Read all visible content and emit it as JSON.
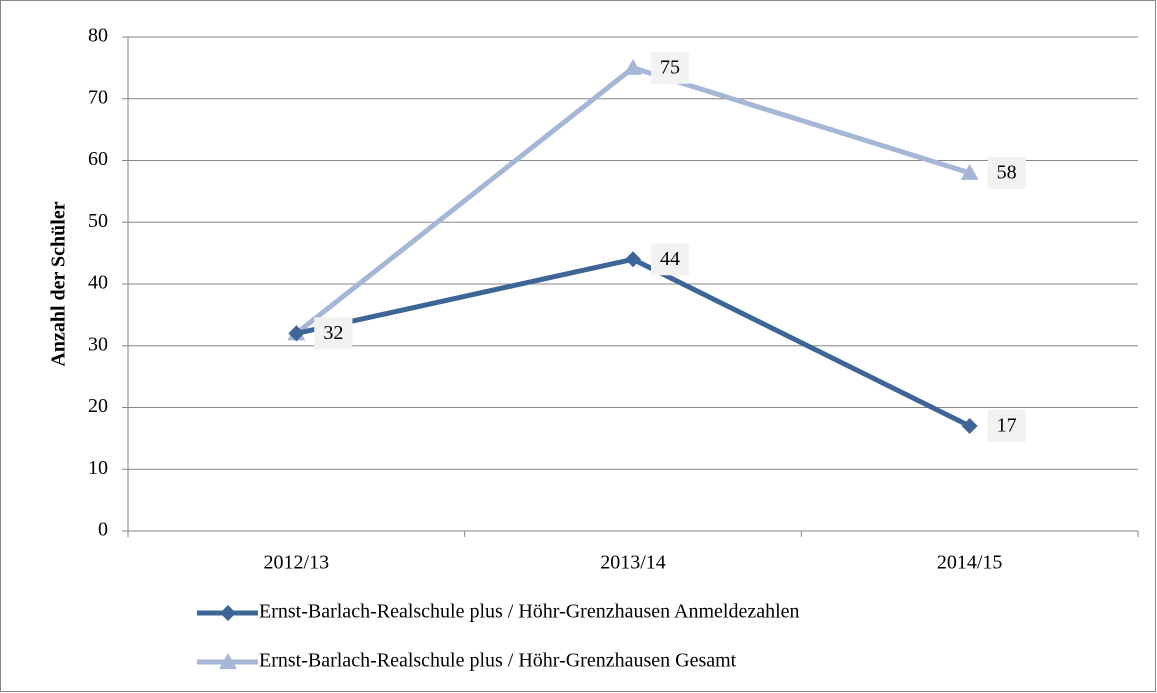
{
  "chart_data": {
    "type": "line",
    "y_label": "Anzahl der Schüler",
    "categories": [
      "2012/13",
      "2013/14",
      "2014/15"
    ],
    "series": [
      {
        "name": "Ernst-Barlach-Realschule plus / Höhr-Grenzhausen Anmeldezahlen",
        "color": "#3d6596",
        "marker": "diamond",
        "values": [
          32,
          44,
          17
        ]
      },
      {
        "name": "Ernst-Barlach-Realschule plus / Höhr-Grenzhausen Gesamt",
        "color": "#a6b6d6",
        "marker": "triangle",
        "values": [
          32,
          75,
          58
        ]
      }
    ],
    "ylim": [
      0,
      80
    ],
    "yticks": [
      0,
      10,
      20,
      30,
      40,
      50,
      60,
      70,
      80
    ],
    "grid": true,
    "legend": "bottom"
  }
}
